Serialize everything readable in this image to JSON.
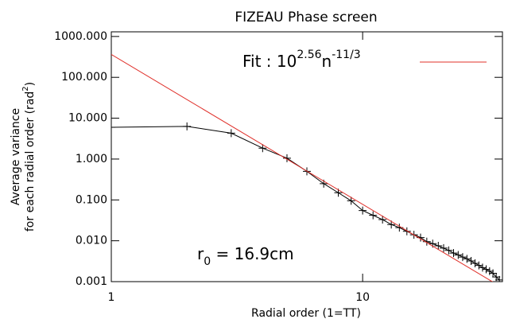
{
  "chart_data": {
    "type": "line",
    "title": "FIZEAU Phase screen",
    "x_label": "Radial order (1=TT)",
    "y_label": {
      "line1": "Average variance",
      "line2": "for each radial order (rad",
      "sup": "2",
      "close": ")"
    },
    "log_x": true,
    "log_y": true,
    "xlim": [
      1,
      36
    ],
    "ylim": [
      0.001,
      1300
    ],
    "xticks": [
      1,
      10
    ],
    "yticks": [
      {
        "value": 0.001,
        "label": "0.001"
      },
      {
        "value": 0.01,
        "label": "0.010"
      },
      {
        "value": 0.1,
        "label": "0.100"
      },
      {
        "value": 1,
        "label": "1.000"
      },
      {
        "value": 10,
        "label": "10.000"
      },
      {
        "value": 100,
        "label": "100.000"
      },
      {
        "value": 1000,
        "label": "1000.000"
      }
    ],
    "series": [
      {
        "color": "#000000",
        "marker": "plus",
        "x": [
          1,
          2,
          3,
          4,
          5,
          6,
          7,
          8,
          9,
          10,
          11,
          12,
          13,
          14,
          15,
          16,
          17,
          18,
          19,
          20,
          21,
          22,
          23,
          24,
          25,
          26,
          27,
          28,
          29,
          30,
          31,
          32,
          33,
          34,
          35
        ],
        "values": [
          6.0,
          6.3,
          4.3,
          1.85,
          1.05,
          0.5,
          0.25,
          0.15,
          0.095,
          0.055,
          0.042,
          0.033,
          0.025,
          0.021,
          0.017,
          0.014,
          0.012,
          0.0095,
          0.0085,
          0.0075,
          0.0066,
          0.0058,
          0.005,
          0.0045,
          0.004,
          0.0036,
          0.0032,
          0.0028,
          0.0025,
          0.0022,
          0.002,
          0.0018,
          0.0016,
          0.0013,
          0.0011
        ]
      },
      {
        "color": "#e0302a",
        "marker": "none",
        "x": [
          1,
          36
        ],
        "values": [
          363,
          0.00071
        ]
      }
    ],
    "legend": {
      "text": "Fit : 10",
      "sup1": "2.56",
      "mid": "n",
      "sup2": "-11/3"
    },
    "annotation": {
      "text": "r",
      "sub": "0",
      "rest": " = 16.9cm"
    }
  }
}
